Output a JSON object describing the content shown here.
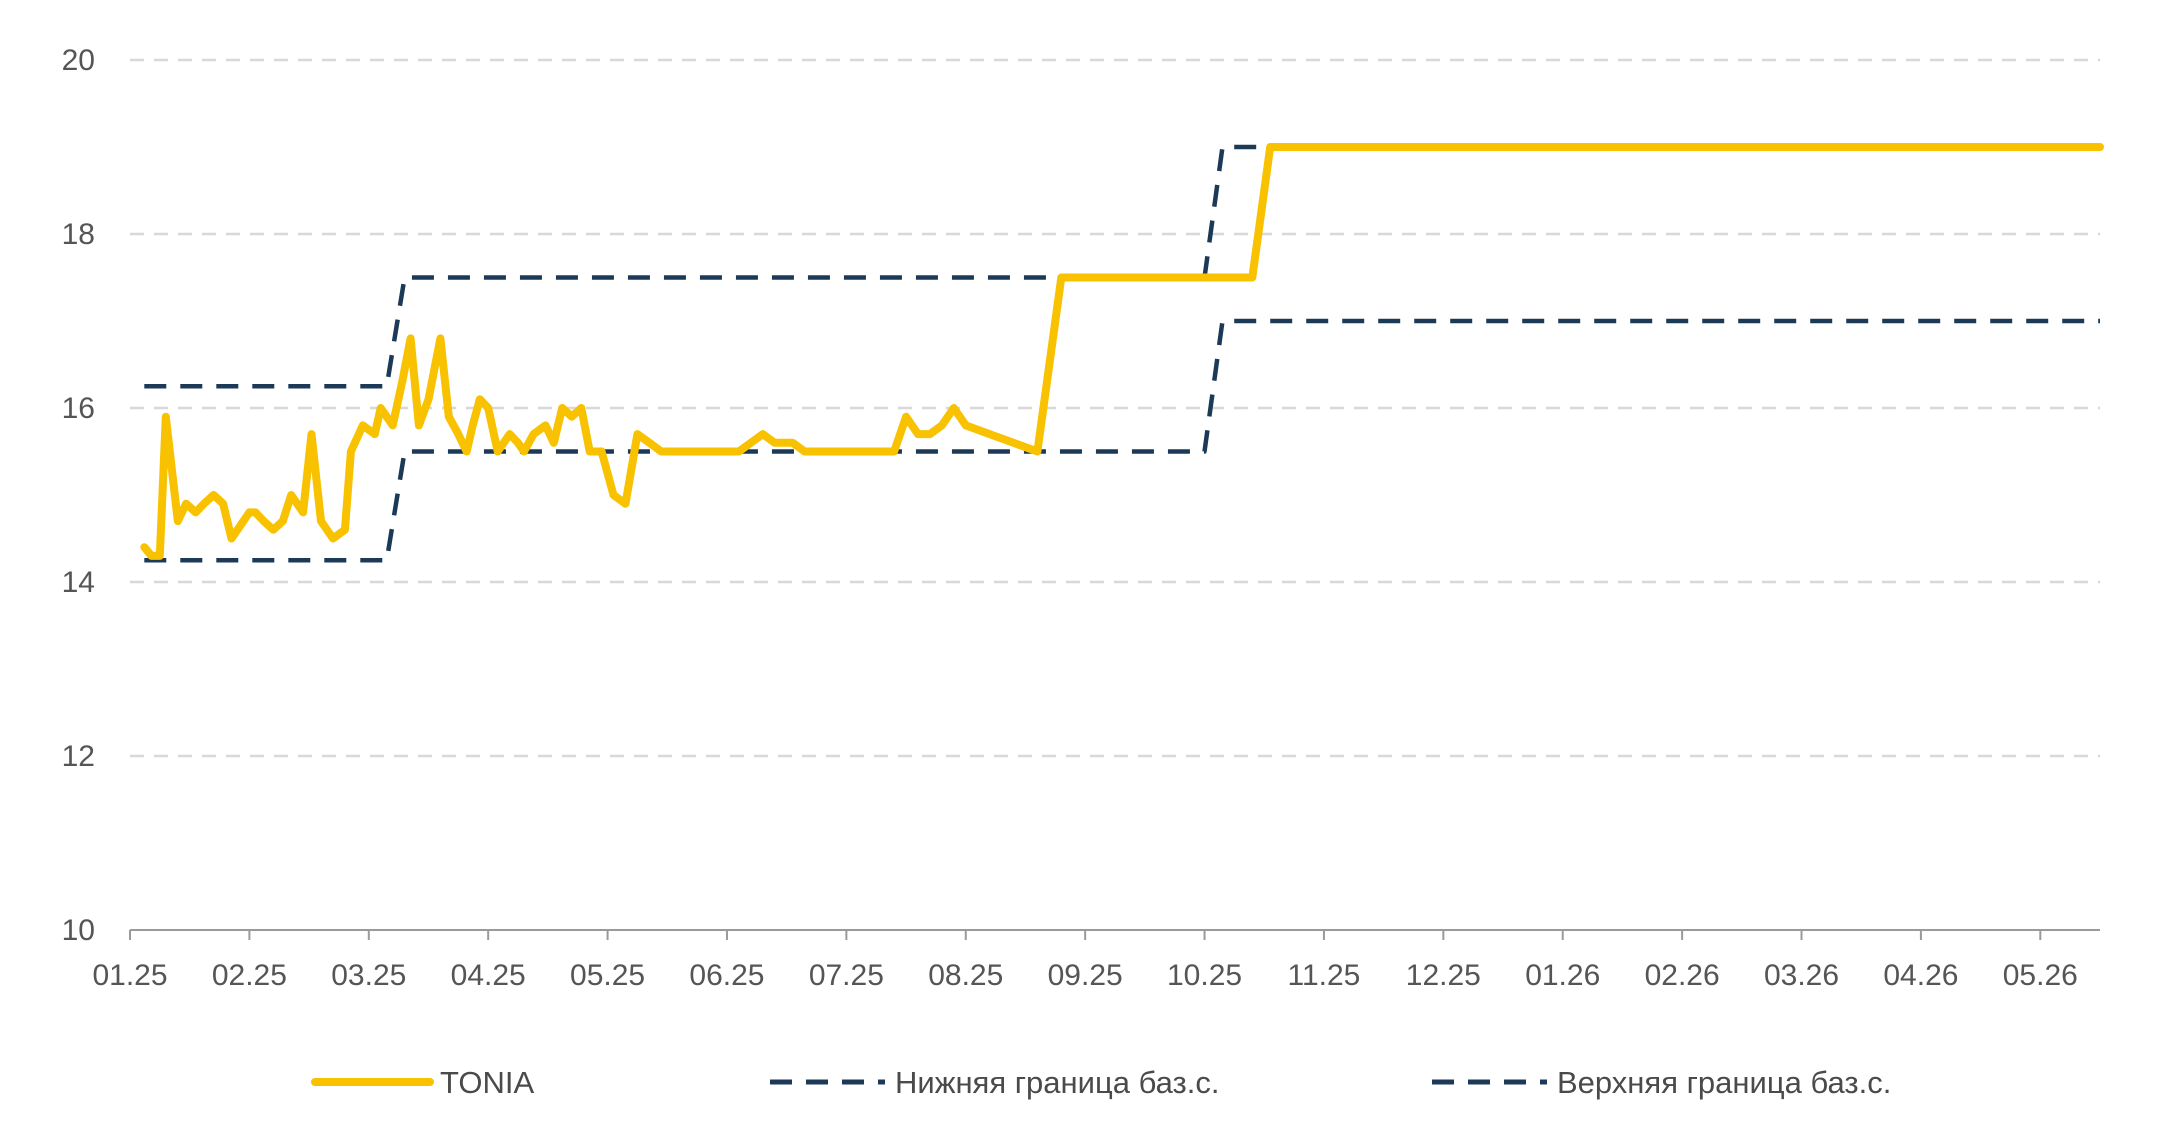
{
  "chart_data": {
    "type": "line",
    "title": "",
    "xlabel": "",
    "ylabel": "",
    "ylim": [
      10,
      20
    ],
    "yticks": [
      "10",
      "12",
      "14",
      "16",
      "18",
      "20"
    ],
    "xlim": [
      0,
      16.5
    ],
    "x_tick_labels": [
      "01.25",
      "02.25",
      "03.25",
      "04.25",
      "05.25",
      "06.25",
      "07.25",
      "08.25",
      "09.25",
      "10.25",
      "11.25",
      "12.25",
      "01.26",
      "02.26",
      "03.26",
      "04.26",
      "05.26"
    ],
    "grid": "horizontal dashed",
    "legend_position": "bottom",
    "colors": {
      "tonia": "#F8C200",
      "bounds": "#1C3A57",
      "grid": "#D8D8D8",
      "axis": "#9A9A9A"
    },
    "series": [
      {
        "name": "TONIA",
        "style": "solid",
        "x": [
          0.12,
          0.18,
          0.25,
          0.3,
          0.4,
          0.47,
          0.55,
          0.62,
          0.7,
          0.78,
          0.85,
          0.95,
          1.0,
          1.05,
          1.12,
          1.2,
          1.28,
          1.35,
          1.45,
          1.52,
          1.6,
          1.7,
          1.8,
          1.85,
          1.95,
          2.05,
          2.1,
          2.15,
          2.2,
          2.28,
          2.35,
          2.42,
          2.5,
          2.6,
          2.67,
          2.75,
          2.82,
          2.87,
          2.93,
          3.0,
          3.08,
          3.18,
          3.25,
          3.3,
          3.38,
          3.48,
          3.55,
          3.62,
          3.7,
          3.78,
          3.85,
          3.95,
          4.05,
          4.15,
          4.25,
          4.35,
          4.45,
          4.55,
          4.65,
          4.72,
          4.8,
          4.9,
          5.0,
          5.1,
          5.2,
          5.3,
          5.4,
          5.45,
          5.5,
          5.55,
          5.65,
          5.7,
          5.8,
          5.9,
          6.0,
          6.1,
          6.2,
          6.3,
          6.4,
          6.5,
          6.6,
          6.7,
          6.8,
          6.9,
          7.0,
          7.2,
          7.4,
          7.6,
          7.8,
          8.0,
          8.2,
          8.4,
          8.6,
          8.8,
          9.0,
          9.2,
          9.4,
          9.55,
          9.7,
          9.85,
          10.0,
          10.1,
          10.2,
          10.3,
          10.4,
          10.5,
          10.6,
          10.7,
          10.8,
          10.9,
          11.0,
          11.1,
          11.3,
          11.5,
          11.7,
          11.85,
          11.9,
          11.95,
          12.0,
          12.05,
          12.2,
          12.4,
          12.6,
          12.8,
          12.95,
          13.0,
          13.05,
          13.15,
          13.25,
          13.35,
          13.45,
          13.55,
          13.65,
          13.75,
          13.85,
          13.95,
          14.05,
          14.15,
          14.25,
          14.35,
          14.45,
          14.55,
          14.62,
          14.7,
          14.78,
          14.85,
          14.95,
          15.05,
          15.15,
          15.25,
          15.35,
          15.45,
          15.55,
          15.65,
          15.72,
          15.78,
          15.85,
          15.92,
          16.0,
          16.1,
          16.2,
          16.25,
          16.3,
          16.38,
          16.45,
          16.5
        ],
        "values": [
          14.4,
          14.3,
          14.3,
          15.9,
          14.7,
          14.9,
          14.8,
          14.9,
          15.0,
          14.9,
          14.5,
          14.7,
          14.8,
          14.8,
          14.7,
          14.6,
          14.7,
          15.0,
          14.8,
          15.7,
          14.7,
          14.5,
          14.6,
          15.5,
          15.8,
          15.7,
          16.0,
          15.9,
          15.8,
          16.3,
          16.8,
          15.8,
          16.1,
          16.8,
          15.9,
          15.7,
          15.5,
          15.8,
          16.1,
          16.0,
          15.5,
          15.7,
          15.6,
          15.5,
          15.7,
          15.8,
          15.6,
          16.0,
          15.9,
          16.0,
          15.5,
          15.5,
          15.0,
          14.9,
          15.7,
          15.6,
          15.5,
          15.5,
          15.5,
          15.5,
          15.5,
          15.5,
          15.5,
          15.5,
          15.6,
          15.7,
          15.6,
          15.6,
          15.6,
          15.6,
          15.5,
          15.5,
          15.5,
          15.5,
          15.5,
          15.5,
          15.5,
          15.5,
          15.5,
          15.9,
          15.7,
          15.7,
          15.8,
          16.0,
          15.8,
          15.7,
          15.6,
          15.5,
          17.5,
          17.5,
          17.5,
          17.5,
          17.5,
          17.5,
          17.5,
          17.5,
          17.5,
          19.0,
          19.0,
          19.0,
          19.0,
          19.0,
          19.0,
          19.0,
          19.0,
          19.0,
          19.0,
          19.0,
          19.0,
          19.0,
          19.0,
          19.0,
          19.0,
          19.0,
          19.0,
          19.0,
          19.0,
          19.0,
          19.0,
          19.0,
          19.0,
          19.0,
          19.0,
          19.0,
          19.0,
          19.0,
          19.0,
          19.0,
          19.0,
          19.0,
          19.0,
          19.0,
          19.0,
          19.0,
          19.0,
          19.0,
          19.0,
          19.0,
          19.0,
          19.0,
          19.0,
          19.0,
          19.0,
          19.0,
          19.0,
          19.0,
          19.0,
          19.0,
          19.0,
          19.0,
          19.0,
          19.0,
          19.0,
          19.0,
          19.0,
          19.0,
          19.0,
          19.0,
          19.0,
          19.0,
          19.0,
          19.0,
          19.0,
          19.0,
          19.0,
          19.0
        ]
      },
      {
        "name": "Нижняя граница баз.с.",
        "style": "dashed",
        "x": [
          0.12,
          2.15,
          2.3,
          9.0,
          9.15,
          16.5
        ],
        "values": [
          14.25,
          14.25,
          15.5,
          15.5,
          17.0,
          17.0
        ]
      },
      {
        "name": "Верхняя граница баз.с.",
        "style": "dashed",
        "x": [
          0.12,
          2.15,
          2.3,
          9.0,
          9.15,
          16.5
        ],
        "values": [
          16.25,
          16.25,
          17.5,
          17.5,
          19.0,
          19.0
        ]
      }
    ]
  }
}
